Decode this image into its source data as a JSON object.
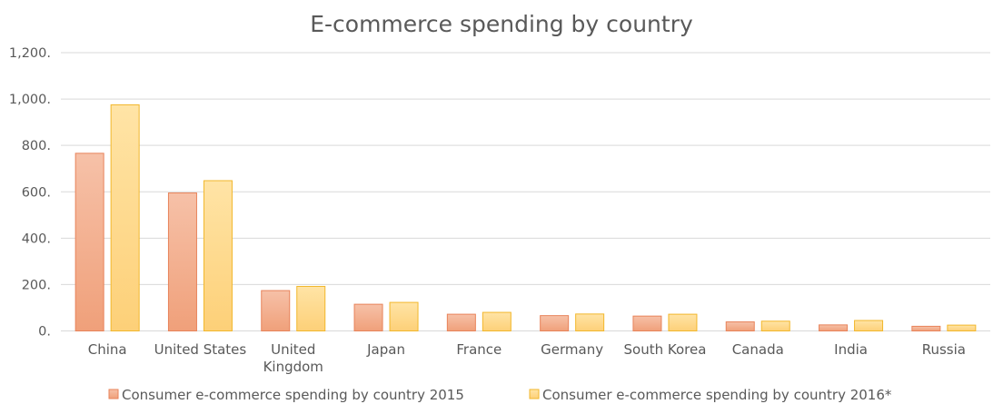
{
  "chart_data": {
    "type": "bar",
    "title": "E-commerce spending by country",
    "categories": [
      [
        "China"
      ],
      [
        "United States"
      ],
      [
        "United",
        "Kingdom"
      ],
      [
        "Japan"
      ],
      [
        "France"
      ],
      [
        "Germany"
      ],
      [
        "South Korea"
      ],
      [
        "Canada"
      ],
      [
        "India"
      ],
      [
        "Russia"
      ]
    ],
    "series": [
      {
        "name": "Consumer e-commerce spending by country 2015",
        "values": [
          766,
          595,
          174,
          115,
          72,
          66,
          64,
          39,
          26,
          20
        ],
        "color_top": "#f6c1a8",
        "color_bottom": "#f0a07a",
        "stroke": "#e8835a"
      },
      {
        "name": "Consumer e-commerce spending by country 2016*",
        "values": [
          975,
          648,
          192,
          123,
          80,
          73,
          72,
          42,
          45,
          25
        ],
        "color_top": "#ffe4a6",
        "color_bottom": "#fdd078",
        "stroke": "#f2b72c"
      }
    ],
    "y_ticks": [
      "0.",
      "200.",
      "400.",
      "600.",
      "800.",
      "1,000.",
      "1,200."
    ],
    "ylim": [
      0,
      1200
    ],
    "grid": true,
    "legend_position": "bottom"
  }
}
